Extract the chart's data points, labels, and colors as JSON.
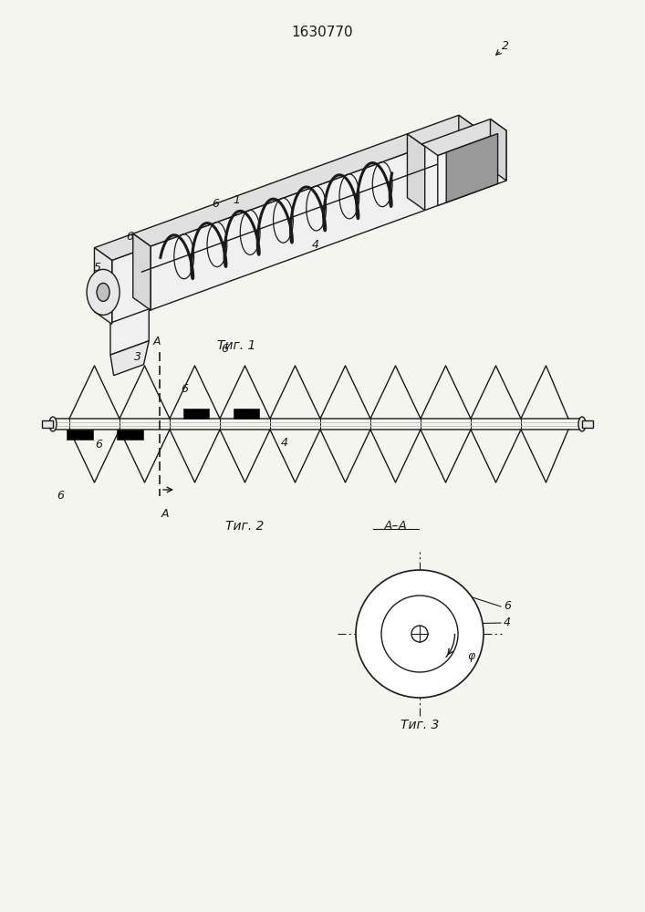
{
  "title": "1630770",
  "fig1_label": "Τиг. 1",
  "fig2_label": "Τиг. 2",
  "fig3_label": "Τиг. 3",
  "AA_label": "A–A",
  "bg_color": "#f5f5f0",
  "line_color": "#1a1a1a",
  "title_fontsize": 11,
  "label_fontsize": 10,
  "annot_fontsize": 9
}
